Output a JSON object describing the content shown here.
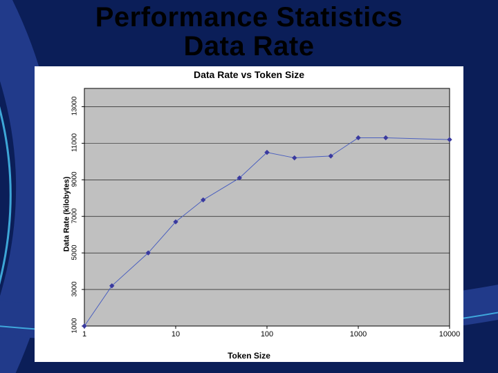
{
  "slide": {
    "title_line1": "Performance Statistics",
    "title_line2": "Data Rate",
    "background_color": "#0b1e58",
    "arc_stroke": "#213a8a",
    "arc_highlight": "#43b5e5"
  },
  "chart": {
    "type": "line",
    "title": "Data Rate vs Token Size",
    "xlabel": "Token Size",
    "ylabel": "Data Rate (kilobytes)",
    "background_color": "#ffffff",
    "plot_bg": "#c0c0c0",
    "grid_color": "#000000",
    "axis_color": "#000000",
    "line_color": "#4a5fbf",
    "marker_color": "#3a3a9f",
    "marker_size": 3,
    "line_width": 1,
    "title_fontsize": 14,
    "label_fontsize": 11,
    "tick_fontsize": 10,
    "x_scale": "log",
    "x_ticks": [
      1,
      10,
      100,
      1000,
      10000
    ],
    "x_tick_labels": [
      "1",
      "10",
      "100",
      "1000",
      "10000"
    ],
    "y_ticks": [
      1000,
      3000,
      5000,
      7000,
      9000,
      11000,
      13000
    ],
    "y_tick_labels": [
      "1000",
      "3000",
      "5000",
      "7000",
      "9000",
      "11000",
      "13000"
    ],
    "ylim": [
      1000,
      14000
    ],
    "data_x": [
      1,
      2,
      5,
      10,
      20,
      50,
      100,
      200,
      500,
      1000,
      2000,
      10000
    ],
    "data_y": [
      1000,
      3200,
      5000,
      6700,
      7900,
      9100,
      10500,
      10200,
      10300,
      11300,
      11300,
      11200
    ]
  }
}
